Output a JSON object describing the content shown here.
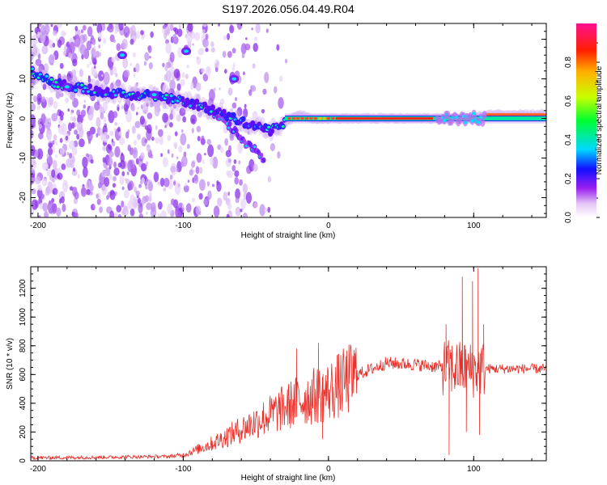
{
  "title": "S197.2026.056.04.49.R04",
  "chart_data": [
    {
      "type": "heatmap",
      "name": "spectrogram",
      "xlabel": "Height of straight line (km)",
      "ylabel": "Frequency (Hz)",
      "xlim": [
        -205,
        150
      ],
      "ylim": [
        -25,
        24
      ],
      "xticks": [
        -200,
        -100,
        0,
        100
      ],
      "yticks": [
        -20,
        -10,
        0,
        10,
        20
      ],
      "colorbar": {
        "label": "Normalized spectral amplitude",
        "range": [
          0,
          1
        ],
        "ticks": [
          "0.0",
          "0.2",
          "0.4",
          "0.6",
          "0.8"
        ],
        "tick_values": [
          0.0,
          0.2,
          0.4,
          0.6,
          0.8
        ]
      },
      "features": [
        {
          "name": "carrier-trace",
          "x": [
            -205,
            -190,
            -175,
            -160,
            -140,
            -125,
            -110,
            -95,
            -80,
            -65,
            -50,
            -40,
            -30,
            -20,
            -10,
            0,
            70,
            80,
            90,
            100,
            110,
            150
          ],
          "y": [
            12,
            9,
            8,
            7,
            6,
            6,
            5,
            4,
            2,
            0,
            -2,
            -3,
            -1,
            1,
            0,
            0,
            0,
            0,
            0,
            0,
            1,
            1
          ]
        },
        {
          "name": "steep-branch",
          "x": [
            -85,
            -75,
            -65,
            -58,
            -50,
            -44
          ],
          "y": [
            3,
            0,
            -3,
            -6,
            -8,
            -11
          ]
        }
      ]
    },
    {
      "type": "line",
      "name": "snr",
      "xlabel": "Height of straight line (km)",
      "ylabel": "SNR (10 * v/v)",
      "xlim": [
        -205,
        150
      ],
      "ylim": [
        0,
        1350
      ],
      "xticks": [
        -200,
        -100,
        0,
        100
      ],
      "yticks": [
        0,
        200,
        400,
        600,
        800,
        1000,
        1200
      ],
      "color": "#e8302a",
      "envelope_x": [
        -205,
        -150,
        -110,
        -100,
        -80,
        -60,
        -40,
        -20,
        0,
        20,
        40,
        60,
        80,
        90,
        100,
        105,
        150
      ],
      "envelope_y": [
        20,
        25,
        30,
        40,
        120,
        220,
        320,
        420,
        480,
        600,
        680,
        670,
        650,
        640,
        630,
        640,
        640
      ],
      "spikes": [
        {
          "x": -22,
          "y": 780
        },
        {
          "x": -7,
          "y": 820
        },
        {
          "x": -4,
          "y": 150
        },
        {
          "x": 81,
          "y": 950
        },
        {
          "x": 83,
          "y": 40
        },
        {
          "x": 92,
          "y": 1280
        },
        {
          "x": 95,
          "y": 200
        },
        {
          "x": 99,
          "y": 1250
        },
        {
          "x": 103,
          "y": 1340
        },
        {
          "x": 104,
          "y": 180
        },
        {
          "x": 107,
          "y": 950
        }
      ]
    }
  ]
}
